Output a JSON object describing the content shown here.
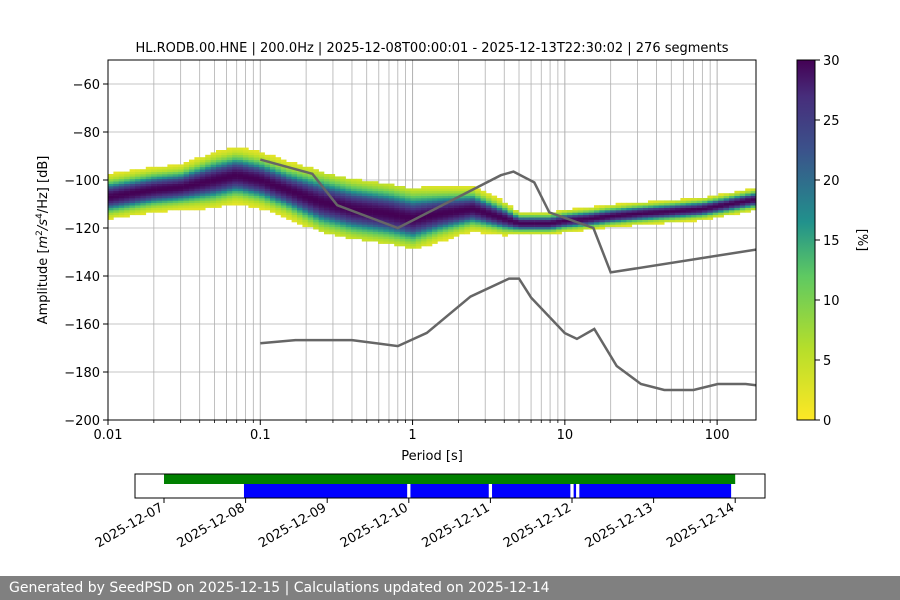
{
  "chart_data": [
    {
      "type": "heatmap",
      "title": "HL.RODB.00.HNE | 200.0Hz | 2025-12-08T00:00:01 - 2025-12-13T22:30:02 | 276 segments",
      "xlabel": "Period [s]",
      "ylabel_parts": [
        "Amplitude [",
        "m",
        "2",
        "/",
        "s",
        "4",
        "/Hz] [dB]"
      ],
      "xscale": "log",
      "xlim": [
        0.01,
        180
      ],
      "ylim": [
        -200,
        -50
      ],
      "xticks": [
        0.01,
        0.1,
        1,
        10,
        100
      ],
      "xtick_labels": [
        "0.01",
        "0.1",
        "1",
        "10",
        "100"
      ],
      "yticks": [
        -60,
        -80,
        -100,
        -120,
        -140,
        -160,
        -180,
        -200
      ],
      "ytick_labels": [
        "−60",
        "−80",
        "−100",
        "−120",
        "−140",
        "−160",
        "−180",
        "−200"
      ],
      "grid": true,
      "mode_curve": {
        "period": [
          0.01,
          0.02,
          0.03,
          0.05,
          0.07,
          0.1,
          0.15,
          0.25,
          0.4,
          0.7,
          1.0,
          1.5,
          2.5,
          4.0,
          5.0,
          6.0,
          7.0,
          8.0,
          10,
          15,
          20,
          30,
          50,
          80,
          120,
          180
        ],
        "db": [
          -107,
          -104,
          -103,
          -100,
          -98,
          -100,
          -104,
          -109,
          -112,
          -114,
          -116,
          -114,
          -112,
          -116,
          -118,
          -118,
          -118,
          -118,
          -117,
          -116,
          -115,
          -114,
          -113,
          -112,
          -110,
          -108
        ]
      },
      "spread_db": [
        4,
        4,
        4,
        5,
        5,
        5,
        5,
        6,
        6,
        6,
        6,
        5,
        4,
        3,
        2,
        2,
        2,
        2,
        2,
        2,
        2,
        2,
        2,
        2,
        2,
        2
      ],
      "colorbar": {
        "label": "[%]",
        "min": 0,
        "max": 30,
        "ticks": [
          0,
          5,
          10,
          15,
          20,
          25,
          30
        ],
        "colormap": [
          "#fde725",
          "#5ec962",
          "#21918c",
          "#3b528b",
          "#440154"
        ]
      },
      "noise_model_color": "#666666",
      "nhnm": {
        "period": [
          0.1,
          0.22,
          0.32,
          0.8,
          3.8,
          4.6,
          6.3,
          7.9,
          15.4,
          20,
          180
        ],
        "db": [
          -91.5,
          -97.4,
          -110.5,
          -120,
          -98,
          -96.5,
          -101,
          -113.5,
          -120,
          -138.5,
          -129
        ]
      },
      "nlnm": {
        "period": [
          0.1,
          0.17,
          0.4,
          0.8,
          1.24,
          2.4,
          4.3,
          5.0,
          6.0,
          10,
          12,
          15.6,
          21.9,
          31.6,
          45,
          70,
          101,
          154,
          180
        ],
        "db": [
          -168,
          -166.7,
          -166.7,
          -169.2,
          -163.7,
          -148.6,
          -141.1,
          -141.1,
          -149,
          -163.8,
          -166.2,
          -162.1,
          -177.5,
          -185,
          -187.5,
          -187.5,
          -185,
          -185,
          -185.5
        ]
      }
    },
    {
      "type": "timeline",
      "dates": [
        "2025-12-07",
        "2025-12-08",
        "2025-12-09",
        "2025-12-10",
        "2025-12-11",
        "2025-12-12",
        "2025-12-13",
        "2025-12-14"
      ],
      "requested_range": {
        "start_day": 0.0,
        "end_day": 7.0,
        "color": "#008000"
      },
      "segments": [
        {
          "start_day": 0.98,
          "end_day": 2.98
        },
        {
          "start_day": 3.02,
          "end_day": 3.98
        },
        {
          "start_day": 4.02,
          "end_day": 4.98
        },
        {
          "start_day": 5.02,
          "end_day": 5.05
        },
        {
          "start_day": 5.09,
          "end_day": 6.95
        }
      ],
      "segment_color": "#0000ff"
    }
  ],
  "footer": {
    "text": "Generated by SeedPSD on 2025-12-15 | Calculations updated on 2025-12-14"
  }
}
